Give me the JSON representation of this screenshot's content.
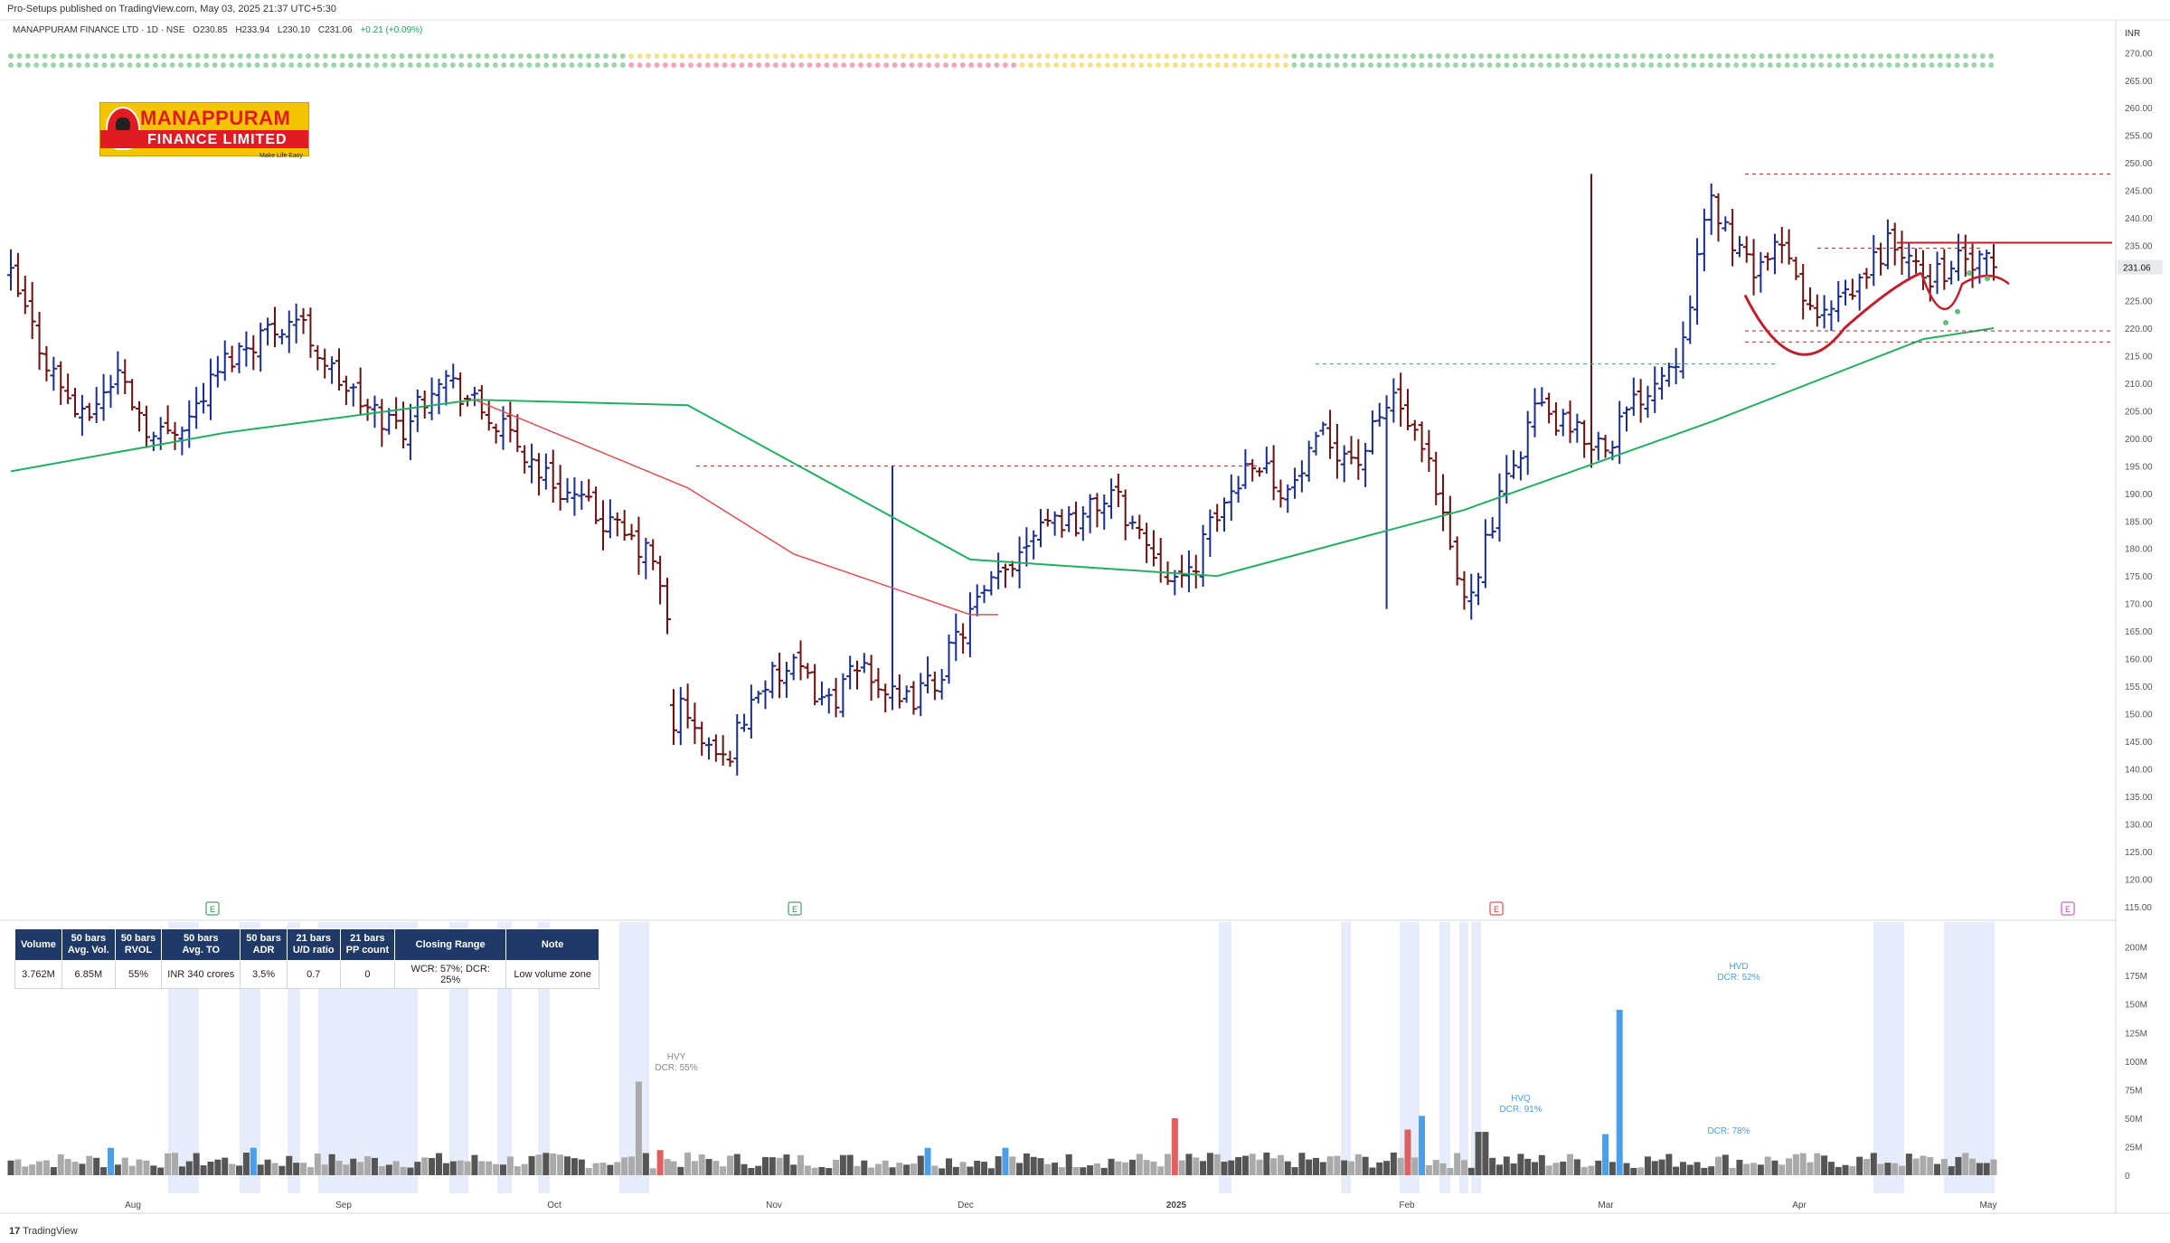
{
  "header": {
    "published_line": "Pro-Setups published on TradingView.com, May 03, 2025 21:37 UTC+5:30",
    "symbol_line": "MANAPPURAM FINANCE LTD · 1D · NSE",
    "open": "O230.85",
    "high": "H233.94",
    "low": "L230.10",
    "close": "C231.06",
    "change": "+0.21 (+0.09%)"
  },
  "logo": {
    "line1": "MANAPPURAM",
    "line2": "FINANCE LIMITED",
    "tagline": "Make Life Easy"
  },
  "price_axis": {
    "currency": "INR",
    "ticks": [
      "270.00",
      "265.00",
      "260.00",
      "255.00",
      "250.00",
      "245.00",
      "240.00",
      "235.00",
      "230.00",
      "225.00",
      "220.00",
      "215.00",
      "210.00",
      "205.00",
      "200.00",
      "195.00",
      "190.00",
      "185.00",
      "180.00",
      "175.00",
      "170.00",
      "165.00",
      "160.00",
      "155.00",
      "150.00",
      "145.00",
      "140.00",
      "135.00",
      "130.00",
      "125.00",
      "120.00",
      "115.00"
    ],
    "last_price": "231.06",
    "last_price_color": "#131722"
  },
  "volume_axis": {
    "ticks": [
      "200M",
      "175M",
      "150M",
      "125M",
      "100M",
      "75M",
      "50M",
      "25M",
      "0"
    ]
  },
  "time_axis": {
    "labels": [
      "Aug",
      "Sep",
      "Oct",
      "Nov",
      "Dec",
      "2025",
      "Feb",
      "Mar",
      "Apr",
      "May"
    ]
  },
  "earnings_markers": [
    "E",
    "E",
    "E",
    "E"
  ],
  "stats_table": {
    "headers": [
      "Volume",
      "50 bars\nAvg. Vol.",
      "50 bars\nRVOL",
      "50 bars\nAvg. TO",
      "50 bars\nADR",
      "21 bars\nU/D ratio",
      "21 bars\nPP count",
      "Closing Range",
      "Note"
    ],
    "values": [
      "3.762M",
      "6.85M",
      "55%",
      "INR 340 crores",
      "3.5%",
      "0.7",
      "0",
      "WCR: 57%; DCR: 25%",
      "Low volume zone"
    ]
  },
  "volume_annotations": [
    {
      "label": "HVY",
      "sub": "DCR: 55%"
    },
    {
      "label": "HVQ",
      "sub": "DCR: 91%"
    },
    {
      "label": "HVD",
      "sub": "DCR: 52%"
    },
    {
      "label": "",
      "sub": "DCR: 78%"
    }
  ],
  "footer": {
    "brand": "TradingView"
  },
  "colors": {
    "up_bar": "#1a2d8c",
    "down_bar": "#6b1010",
    "ma_green": "#22b060",
    "ma_red": "#e05050",
    "resistance": "#c0202a",
    "vol_up": "#555555",
    "vol_down": "#aaaaaa",
    "vol_high": "#4a9fe8",
    "vol_red": "#e06060",
    "shade": "#e6ecfa"
  },
  "chart_data": {
    "type": "ohlc",
    "instrument": "MANAPPURAM FINANCE LTD",
    "interval": "1D",
    "ylim": [
      113,
      273
    ],
    "volume_ylim": [
      0,
      210
    ],
    "volume_unit": "M",
    "months": [
      "Aug",
      "Sep",
      "Oct",
      "Nov",
      "Dec",
      "2025",
      "Feb",
      "Mar",
      "Apr",
      "May"
    ],
    "price_anchors": [
      {
        "t": "Jul",
        "close": 229
      },
      {
        "t": "Jul",
        "close": 214
      },
      {
        "t": "Jul",
        "close": 203
      },
      {
        "t": "Aug",
        "close": 212
      },
      {
        "t": "Aug",
        "close": 200
      },
      {
        "t": "Aug",
        "close": 204
      },
      {
        "t": "Aug",
        "close": 214
      },
      {
        "t": "Sep",
        "close": 219
      },
      {
        "t": "Sep",
        "close": 222
      },
      {
        "t": "Sep",
        "close": 212
      },
      {
        "t": "Sep",
        "close": 205
      },
      {
        "t": "Sep",
        "close": 202
      },
      {
        "t": "Sep",
        "close": 212
      },
      {
        "t": "Oct",
        "close": 206
      },
      {
        "t": "Oct",
        "close": 200
      },
      {
        "t": "Oct",
        "close": 193
      },
      {
        "t": "Oct",
        "close": 188
      },
      {
        "t": "Oct",
        "close": 183
      },
      {
        "t": "Oct",
        "close": 178
      },
      {
        "t": "Oct",
        "close": 148
      },
      {
        "t": "Oct",
        "close": 141
      },
      {
        "t": "Nov",
        "close": 155
      },
      {
        "t": "Nov",
        "close": 158
      },
      {
        "t": "Nov",
        "close": 152
      },
      {
        "t": "Nov",
        "close": 159
      },
      {
        "t": "Nov",
        "close": 151
      },
      {
        "t": "Nov",
        "close": 156
      },
      {
        "t": "Dec",
        "close": 168
      },
      {
        "t": "Dec",
        "close": 176
      },
      {
        "t": "Dec",
        "close": 186
      },
      {
        "t": "Dec",
        "close": 185
      },
      {
        "t": "Dec",
        "close": 190
      },
      {
        "t": "Dec",
        "close": 181
      },
      {
        "t": "Dec",
        "close": 173
      },
      {
        "t": "2025",
        "close": 186
      },
      {
        "t": "2025",
        "close": 197
      },
      {
        "t": "2025",
        "close": 190
      },
      {
        "t": "2025",
        "close": 200
      },
      {
        "t": "2025",
        "close": 196
      },
      {
        "t": "Feb",
        "close": 208
      },
      {
        "t": "Feb",
        "close": 194
      },
      {
        "t": "Feb",
        "close": 170
      },
      {
        "t": "Feb",
        "close": 188
      },
      {
        "t": "Feb",
        "close": 206
      },
      {
        "t": "Feb",
        "close": 201
      },
      {
        "t": "Mar",
        "close": 199
      },
      {
        "t": "Mar",
        "close": 208
      },
      {
        "t": "Mar",
        "close": 215
      },
      {
        "t": "Mar",
        "close": 243
      },
      {
        "t": "Mar",
        "close": 231
      },
      {
        "t": "Apr",
        "close": 234
      },
      {
        "t": "Apr",
        "close": 221
      },
      {
        "t": "Apr",
        "close": 226
      },
      {
        "t": "Apr",
        "close": 236
      },
      {
        "t": "Apr",
        "close": 229
      },
      {
        "t": "May",
        "close": 232
      },
      {
        "t": "May",
        "close": 231
      }
    ],
    "ma_green_anchors": [
      [
        0,
        194
      ],
      [
        6,
        201
      ],
      [
        13,
        207
      ],
      [
        19,
        206
      ],
      [
        27,
        178
      ],
      [
        34,
        175
      ],
      [
        41,
        187
      ],
      [
        48,
        203
      ],
      [
        54,
        218
      ],
      [
        57,
        220
      ]
    ],
    "ma_red_anchors": [
      [
        13,
        207
      ],
      [
        19,
        191
      ],
      [
        22,
        179
      ],
      [
        27,
        168
      ],
      [
        27.8,
        168
      ]
    ],
    "levels": [
      {
        "price": 248,
        "style": "dashed",
        "color": "red"
      },
      {
        "price": 235.5,
        "style": "solid",
        "color": "red"
      },
      {
        "price": 234.5,
        "style": "dashed",
        "color": "red"
      },
      {
        "price": 219.5,
        "style": "dashed",
        "color": "red"
      },
      {
        "price": 217.5,
        "style": "dashed",
        "color": "red"
      },
      {
        "price": 213.5,
        "style": "dashed",
        "color": "green"
      },
      {
        "price": 195,
        "style": "dashed",
        "color": "red"
      }
    ],
    "last_close": 231.06
  }
}
